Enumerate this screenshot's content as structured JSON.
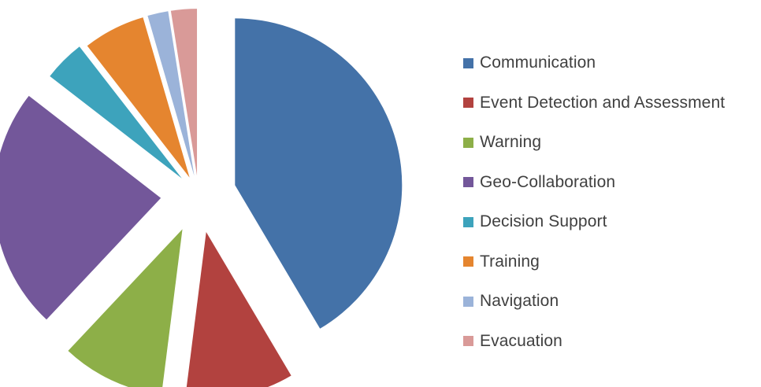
{
  "chart_data": {
    "type": "pie",
    "exploded": true,
    "start_angle_deg": 0,
    "direction": "clockwise",
    "legend_position": "right",
    "slices": [
      {
        "label": "Communication",
        "value": 41.5,
        "color": "#4472A8"
      },
      {
        "label": "Event Detection and Assessment",
        "value": 10.5,
        "color": "#B2423F"
      },
      {
        "label": "Warning",
        "value": 10.0,
        "color": "#8DAF48"
      },
      {
        "label": "Geo-Collaboration",
        "value": 23.5,
        "color": "#73579A"
      },
      {
        "label": "Decision Support",
        "value": 4.0,
        "color": "#3DA3BC"
      },
      {
        "label": "Training",
        "value": 6.0,
        "color": "#E5852F"
      },
      {
        "label": "Navigation",
        "value": 2.0,
        "color": "#9BB3D9"
      },
      {
        "label": "Evacuation",
        "value": 2.5,
        "color": "#D99A98"
      }
    ]
  }
}
